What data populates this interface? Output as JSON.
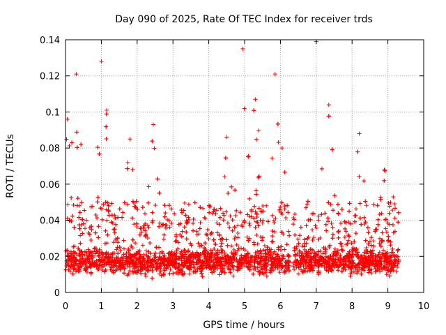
{
  "chart_data": {
    "type": "scatter",
    "title": "Day 090 of 2025, Rate Of TEC Index for receiver trds",
    "xlabel": "GPS time / hours",
    "ylabel": "ROTI / TECUs",
    "xlim": [
      0,
      10
    ],
    "ylim": [
      0,
      0.14
    ],
    "xticks": [
      "0",
      "1",
      "2",
      "3",
      "4",
      "5",
      "6",
      "7",
      "8",
      "9",
      "10"
    ],
    "yticks": [
      "0",
      "0.02",
      "0.04",
      "0.06",
      "0.08",
      "0.1",
      "0.12",
      "0.14"
    ],
    "xtick_values": [
      0,
      1,
      2,
      3,
      4,
      5,
      6,
      7,
      8,
      9,
      10
    ],
    "ytick_values": [
      0,
      0.02,
      0.04,
      0.06,
      0.08,
      0.1,
      0.12,
      0.14
    ],
    "grid": true,
    "marker": "+",
    "color": "#ff0000",
    "series": [
      {
        "name": "ROTI",
        "x_range": [
          0.0,
          9.3
        ],
        "gap": [
          6.25,
          6.35
        ],
        "baseline_median": 0.017,
        "peaks": [
          {
            "x": 0.05,
            "y": 0.096
          },
          {
            "x": 0.3,
            "y": 0.121
          },
          {
            "x": 1.0,
            "y": 0.128
          },
          {
            "x": 1.15,
            "y": 0.101
          },
          {
            "x": 1.8,
            "y": 0.085
          },
          {
            "x": 2.45,
            "y": 0.093
          },
          {
            "x": 4.5,
            "y": 0.086
          },
          {
            "x": 4.95,
            "y": 0.135
          },
          {
            "x": 5.3,
            "y": 0.107
          },
          {
            "x": 5.85,
            "y": 0.121
          },
          {
            "x": 6.05,
            "y": 0.08
          },
          {
            "x": 7.0,
            "y": 0.139
          },
          {
            "x": 7.35,
            "y": 0.104
          },
          {
            "x": 8.2,
            "y": 0.088
          },
          {
            "x": 8.9,
            "y": 0.068
          },
          {
            "x": 9.15,
            "y": 0.053
          }
        ]
      }
    ]
  }
}
